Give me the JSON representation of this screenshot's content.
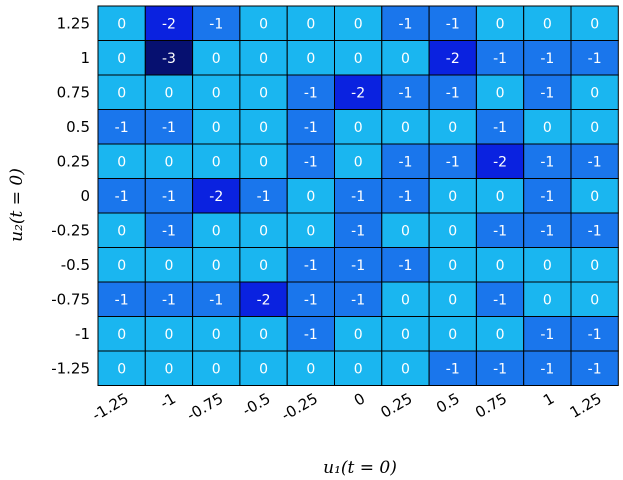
{
  "chart_data": {
    "type": "heatmap",
    "title": "",
    "xlabel": "u₁(t = 0)",
    "ylabel": "u₂(t = 0)",
    "x_ticks": [
      "-1.25",
      "-1",
      "-0.75",
      "-0.5",
      "-0.25",
      "0",
      "0.25",
      "0.5",
      "0.75",
      "1",
      "1.25"
    ],
    "y_ticks": [
      "1.25",
      "1",
      "0.75",
      "0.5",
      "0.25",
      "0",
      "-0.25",
      "-0.5",
      "-0.75",
      "-1",
      "-1.25"
    ],
    "values": [
      [
        0,
        -2,
        -1,
        0,
        0,
        0,
        -1,
        -1,
        0,
        0,
        0
      ],
      [
        0,
        -3,
        0,
        0,
        0,
        0,
        0,
        -2,
        -1,
        -1,
        -1
      ],
      [
        0,
        0,
        0,
        0,
        -1,
        -2,
        -1,
        -1,
        0,
        -1,
        0
      ],
      [
        -1,
        -1,
        0,
        0,
        -1,
        0,
        0,
        0,
        -1,
        0,
        0
      ],
      [
        0,
        0,
        0,
        0,
        -1,
        0,
        -1,
        -1,
        -2,
        -1,
        -1
      ],
      [
        -1,
        -1,
        -2,
        -1,
        0,
        -1,
        -1,
        0,
        0,
        -1,
        0
      ],
      [
        0,
        -1,
        0,
        0,
        0,
        -1,
        0,
        0,
        -1,
        -1,
        -1
      ],
      [
        0,
        0,
        0,
        0,
        -1,
        -1,
        -1,
        0,
        0,
        0,
        0
      ],
      [
        -1,
        -1,
        -1,
        -2,
        -1,
        -1,
        0,
        0,
        -1,
        0,
        0
      ],
      [
        0,
        0,
        0,
        0,
        -1,
        0,
        0,
        0,
        0,
        -1,
        -1
      ],
      [
        0,
        0,
        0,
        0,
        0,
        0,
        0,
        -1,
        -1,
        -1,
        -1
      ]
    ],
    "colors": {
      "0": "#1ab6f0",
      "-1": "#1a76ec",
      "-2": "#0a22e0",
      "-3": "#061070"
    },
    "value_text_color": "#ffffff",
    "cell_border_color": "#000000",
    "grid": true
  }
}
